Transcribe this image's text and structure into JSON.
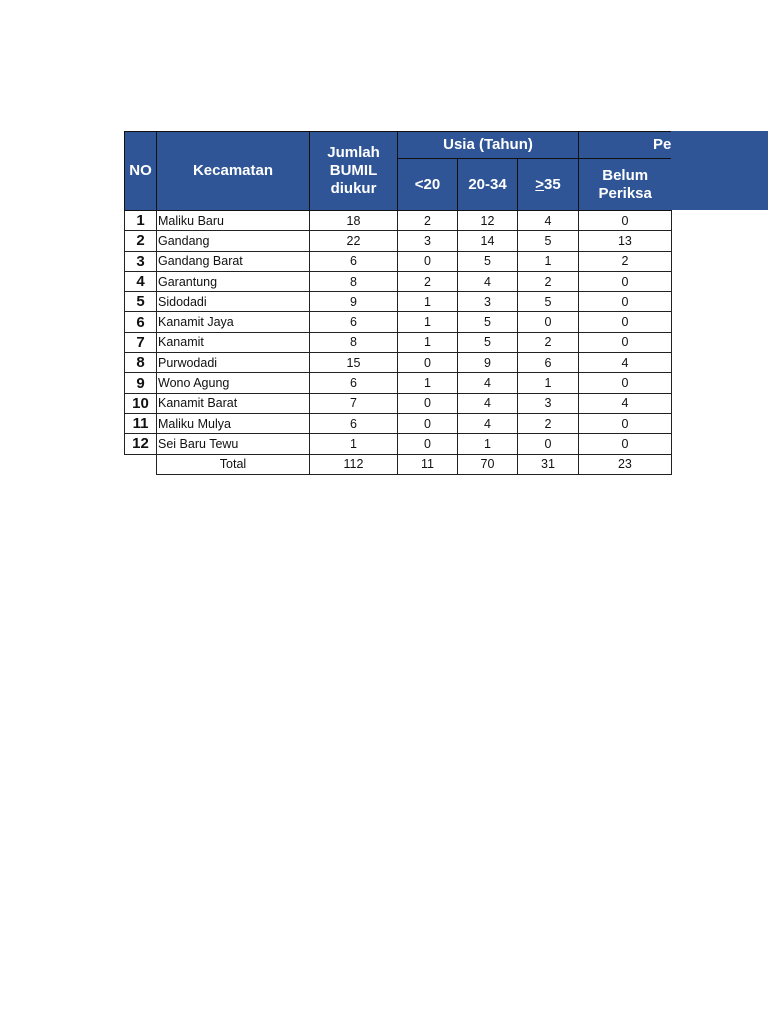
{
  "header": {
    "no": "NO",
    "kecamatan": "Kecamatan",
    "jumlah": "Jumlah BUMIL diukur",
    "usia_group": "Usia (Tahun)",
    "usia_cols": [
      "<20",
      "20-34",
      ">35"
    ],
    "clipped_group": "Pe",
    "belum_periksa": "Belum Periksa"
  },
  "rows": [
    {
      "no": "1",
      "name": "Maliku Baru",
      "jumlah": "18",
      "u20": "2",
      "u2034": "12",
      "u35": "4",
      "belum": "0"
    },
    {
      "no": "2",
      "name": "Gandang",
      "jumlah": "22",
      "u20": "3",
      "u2034": "14",
      "u35": "5",
      "belum": "13"
    },
    {
      "no": "3",
      "name": "Gandang Barat",
      "jumlah": "6",
      "u20": "0",
      "u2034": "5",
      "u35": "1",
      "belum": "2"
    },
    {
      "no": "4",
      "name": "Garantung",
      "jumlah": "8",
      "u20": "2",
      "u2034": "4",
      "u35": "2",
      "belum": "0"
    },
    {
      "no": "5",
      "name": "Sidodadi",
      "jumlah": "9",
      "u20": "1",
      "u2034": "3",
      "u35": "5",
      "belum": "0"
    },
    {
      "no": "6",
      "name": "Kanamit Jaya",
      "jumlah": "6",
      "u20": "1",
      "u2034": "5",
      "u35": "0",
      "belum": "0"
    },
    {
      "no": "7",
      "name": "Kanamit",
      "jumlah": "8",
      "u20": "1",
      "u2034": "5",
      "u35": "2",
      "belum": "0"
    },
    {
      "no": "8",
      "name": "Purwodadi",
      "jumlah": "15",
      "u20": "0",
      "u2034": "9",
      "u35": "6",
      "belum": "4"
    },
    {
      "no": "9",
      "name": "Wono Agung",
      "jumlah": "6",
      "u20": "1",
      "u2034": "4",
      "u35": "1",
      "belum": "0"
    },
    {
      "no": "10",
      "name": "Kanamit Barat",
      "jumlah": "7",
      "u20": "0",
      "u2034": "4",
      "u35": "3",
      "belum": "4"
    },
    {
      "no": "11",
      "name": "Maliku Mulya",
      "jumlah": "6",
      "u20": "0",
      "u2034": "4",
      "u35": "2",
      "belum": "0"
    },
    {
      "no": "12",
      "name": "Sei Baru Tewu",
      "jumlah": "1",
      "u20": "0",
      "u2034": "1",
      "u35": "0",
      "belum": "0"
    }
  ],
  "total": {
    "label": "Total",
    "jumlah": "112",
    "u20": "11",
    "u2034": "70",
    "u35": "31",
    "belum": "23"
  },
  "colors": {
    "header_bg": "#2f5597",
    "header_text": "#ffffff"
  }
}
